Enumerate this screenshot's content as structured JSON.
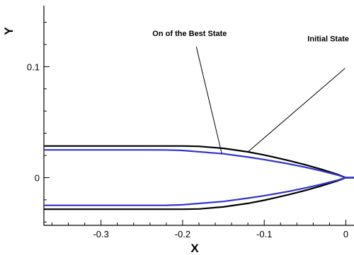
{
  "chart_data": {
    "type": "line",
    "title": "",
    "xlabel": "X",
    "ylabel": "Y",
    "xlim": [
      -0.37,
      0.01
    ],
    "ylim": [
      -0.043,
      0.155
    ],
    "x_ticks": [
      -0.3,
      -0.2,
      -0.1,
      0
    ],
    "x_tick_labels": [
      "-0.3",
      "-0.2",
      "-0.1",
      "0"
    ],
    "y_ticks": [
      0,
      0.1
    ],
    "y_tick_labels": [
      "0",
      "0.1"
    ],
    "grid": false,
    "legend": "none",
    "colors": {
      "initial": "#000000",
      "best": "#3333cc"
    },
    "series": [
      {
        "name": "Initial State",
        "color": "#000000",
        "upper": {
          "x": [
            -0.37,
            -0.3,
            -0.25,
            -0.2,
            -0.18,
            -0.15,
            -0.12,
            -0.1,
            -0.07,
            -0.05,
            -0.03,
            -0.01,
            0.0,
            0.01
          ],
          "y": [
            0.0285,
            0.0285,
            0.0285,
            0.0285,
            0.0282,
            0.0264,
            0.0232,
            0.0204,
            0.0154,
            0.0116,
            0.0075,
            0.0029,
            0.0,
            0.0
          ]
        },
        "lower": {
          "x": [
            -0.37,
            -0.3,
            -0.25,
            -0.2,
            -0.18,
            -0.15,
            -0.12,
            -0.1,
            -0.07,
            -0.05,
            -0.03,
            -0.01,
            0.0,
            0.01
          ],
          "y": [
            -0.0285,
            -0.0285,
            -0.0285,
            -0.0285,
            -0.0282,
            -0.0264,
            -0.0232,
            -0.0204,
            -0.0154,
            -0.0116,
            -0.0075,
            -0.0029,
            0.0,
            0.0
          ]
        }
      },
      {
        "name": "On of the Best State",
        "color": "#3333cc",
        "upper": {
          "x": [
            -0.37,
            -0.3,
            -0.25,
            -0.22,
            -0.2,
            -0.15,
            -0.12,
            -0.1,
            -0.07,
            -0.05,
            -0.03,
            -0.01,
            0.0,
            0.01
          ],
          "y": [
            0.025,
            0.025,
            0.025,
            0.0249,
            0.0245,
            0.0215,
            0.0185,
            0.0163,
            0.0124,
            0.0094,
            0.0061,
            0.0023,
            0.0,
            0.0
          ]
        },
        "lower": {
          "x": [
            -0.37,
            -0.3,
            -0.25,
            -0.22,
            -0.2,
            -0.15,
            -0.12,
            -0.1,
            -0.07,
            -0.05,
            -0.03,
            -0.01,
            0.0,
            0.01
          ],
          "y": [
            -0.025,
            -0.025,
            -0.025,
            -0.0249,
            -0.0245,
            -0.0215,
            -0.0185,
            -0.0163,
            -0.0124,
            -0.0094,
            -0.0061,
            -0.0023,
            0.0,
            0.0
          ]
        }
      }
    ],
    "annotations": [
      {
        "text": "On of the Best State",
        "x": -0.237,
        "y": 0.1275,
        "point_x": -0.152,
        "point_y": 0.0215,
        "line_start_y": 0.118
      },
      {
        "text": "Initial State",
        "x": -0.047,
        "y": 0.1227,
        "point_x": -0.12,
        "point_y": 0.0232,
        "line_start_y": 0.0985
      }
    ]
  }
}
